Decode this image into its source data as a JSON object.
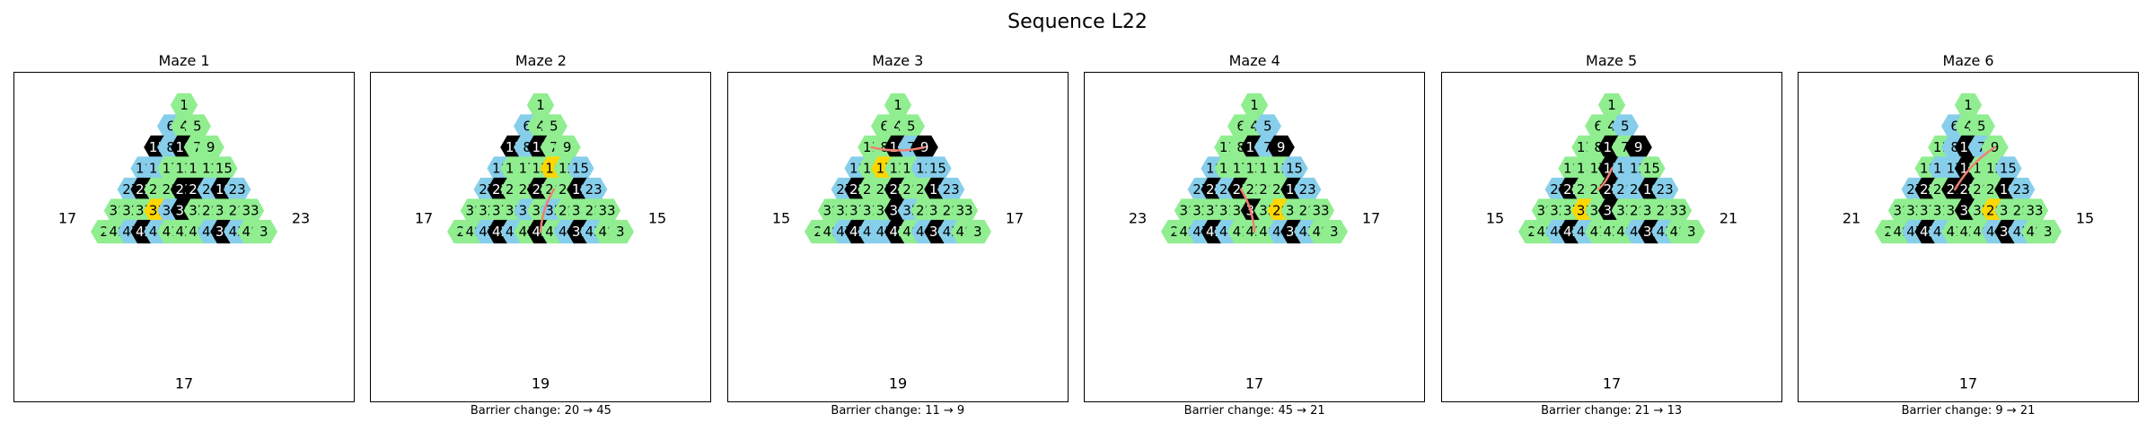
{
  "figure": {
    "title": "Sequence L22"
  },
  "colors": {
    "open": "#90EE90",
    "special": "#87CEEB",
    "wall": "#000000",
    "current": "#FFD700",
    "path": "#F08070"
  },
  "grid": {
    "rows": [
      [
        1
      ],
      [
        6,
        4,
        5
      ],
      [
        11,
        8,
        10,
        7,
        9
      ],
      [
        18,
        14,
        17,
        13,
        16,
        12,
        15
      ],
      [
        27,
        22,
        26,
        21,
        25,
        20,
        24,
        19,
        23
      ],
      [
        38,
        32,
        37,
        31,
        36,
        30,
        35,
        29,
        34,
        28,
        33
      ],
      [
        2,
        49,
        47,
        42,
        46,
        41,
        45,
        40,
        44,
        39,
        43,
        48,
        3
      ]
    ]
  },
  "panels": [
    {
      "title": "Maze 1",
      "caption": "",
      "side_labels": {
        "left": "17",
        "right": "23",
        "bottom": "17"
      },
      "special": [
        6,
        8,
        14,
        18,
        27,
        47,
        46,
        36,
        24,
        23,
        44,
        43
      ],
      "walls": [
        11,
        10,
        22,
        20,
        25,
        30,
        42,
        39,
        19
      ],
      "current": 31,
      "path": []
    },
    {
      "title": "Maze 2",
      "caption": "Barrier change: 20 → 45",
      "side_labels": {
        "left": "17",
        "right": "15",
        "bottom": "19"
      },
      "special": [
        6,
        8,
        18,
        15,
        27,
        47,
        46,
        36,
        35,
        23,
        44,
        43
      ],
      "walls": [
        11,
        10,
        22,
        25,
        19,
        42,
        45,
        39
      ],
      "current": 16,
      "path": [
        20,
        45
      ]
    },
    {
      "title": "Maze 3",
      "caption": "Barrier change: 11 → 9",
      "side_labels": {
        "left": "15",
        "right": "17",
        "bottom": "19"
      },
      "special": [
        7,
        12,
        18,
        15,
        27,
        35,
        41,
        47,
        46,
        23,
        44,
        43
      ],
      "walls": [
        10,
        9,
        22,
        25,
        19,
        30,
        42,
        45,
        39
      ],
      "current": 17,
      "path": [
        11,
        9
      ]
    },
    {
      "title": "Maze 4",
      "caption": "Barrier change: 45 → 21",
      "side_labels": {
        "left": "23",
        "right": "17",
        "bottom": "17"
      },
      "special": [
        5,
        7,
        18,
        27,
        26,
        15,
        23,
        47,
        46,
        44,
        43
      ],
      "walls": [
        10,
        9,
        22,
        21,
        19,
        30,
        42,
        39
      ],
      "current": 29,
      "path": [
        45,
        21
      ]
    },
    {
      "title": "Maze 5",
      "caption": "Barrier change: 21 → 13",
      "side_labels": {
        "left": "15",
        "right": "21",
        "bottom": "17"
      },
      "special": [
        5,
        16,
        12,
        27,
        20,
        24,
        23,
        47,
        46,
        44,
        43
      ],
      "walls": [
        10,
        9,
        22,
        13,
        25,
        30,
        19,
        42,
        39
      ],
      "current": 31,
      "path": [
        21,
        13
      ]
    },
    {
      "title": "Maze 6",
      "caption": "Barrier change: 9 → 21",
      "side_labels": {
        "left": "21",
        "right": "15",
        "bottom": "17"
      },
      "special": [
        6,
        8,
        7,
        14,
        17,
        15,
        27,
        23,
        47,
        46,
        44,
        43
      ],
      "walls": [
        10,
        13,
        22,
        21,
        25,
        30,
        19,
        42,
        39
      ],
      "current": 29,
      "path": [
        9,
        21
      ]
    }
  ]
}
